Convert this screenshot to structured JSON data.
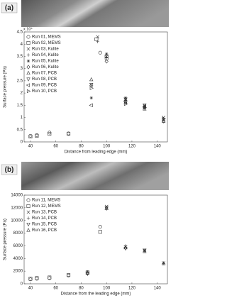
{
  "chart_data": [
    {
      "type": "scatter",
      "panel_label": "(a)",
      "y_multiplier": "x 10⁴",
      "xlabel": "Distance from leading edge (mm)",
      "ylabel": "Surface pressure (Pa)",
      "xlim": [
        35,
        148
      ],
      "xticks": [
        40,
        60,
        80,
        100,
        120,
        140
      ],
      "ylim": [
        0,
        4.5
      ],
      "yticks": [
        0,
        0.5,
        1,
        1.5,
        2,
        2.5,
        3,
        3.5,
        4,
        4.5
      ],
      "series": [
        {
          "name": "Run 01, MEMS",
          "marker": "o",
          "color": "#333333",
          "x": [
            40,
            45,
            55,
            70,
            95,
            100
          ],
          "values": [
            0.25,
            0.28,
            0.38,
            0.35,
            3.65,
            3.4
          ]
        },
        {
          "name": "Run 02, MEMS",
          "marker": "s",
          "color": "#333333",
          "x": [
            40,
            45,
            55,
            70,
            92,
            100
          ],
          "values": [
            0.22,
            0.25,
            0.33,
            0.33,
            4.2,
            3.5
          ]
        },
        {
          "name": "Run 03, Kulite",
          "marker": "x",
          "color": "#333333",
          "x": [
            93,
            100,
            115,
            130,
            145
          ],
          "values": [
            4.3,
            3.5,
            1.75,
            1.5,
            1.0
          ]
        },
        {
          "name": "Run 04, Kulite",
          "marker": "+",
          "color": "#333333",
          "x": [
            93,
            100,
            115,
            130,
            145
          ],
          "values": [
            4.1,
            3.45,
            1.7,
            1.4,
            0.95
          ]
        },
        {
          "name": "Run 05, Kulite",
          "marker": "*",
          "color": "#333333",
          "x": [
            88,
            100,
            115,
            130,
            145
          ],
          "values": [
            1.8,
            3.6,
            1.8,
            1.45,
            0.9
          ]
        },
        {
          "name": "Run 06, Kulite",
          "marker": "d",
          "color": "#333333",
          "x": [
            88,
            100,
            115,
            130,
            145
          ],
          "values": [
            2.3,
            3.3,
            1.65,
            1.4,
            0.85
          ]
        },
        {
          "name": "Run 07, PCB",
          "marker": "^",
          "color": "#333333",
          "x": [
            88,
            115,
            130,
            145
          ],
          "values": [
            2.55,
            1.6,
            1.35,
            0.85
          ]
        },
        {
          "name": "Run 08, PCB",
          "marker": "v",
          "color": "#333333",
          "x": [
            88,
            115,
            130
          ],
          "values": [
            2.35,
            1.75,
            1.5
          ]
        },
        {
          "name": "Run 09, PCB",
          "marker": "<",
          "color": "#333333",
          "x": [
            88,
            115,
            130
          ],
          "values": [
            1.5,
            1.65,
            1.45
          ]
        },
        {
          "name": "Run 10, PCB",
          "marker": ">",
          "color": "#333333",
          "x": [
            88,
            115,
            130,
            145
          ],
          "values": [
            2.2,
            1.55,
            1.4,
            0.95
          ]
        }
      ]
    },
    {
      "type": "scatter",
      "panel_label": "(b)",
      "xlabel": "Distance from the leading edge (mm)",
      "ylabel": "Surface pressure (Pa)",
      "xlim": [
        35,
        148
      ],
      "xticks": [
        40,
        60,
        80,
        100,
        120,
        140
      ],
      "ylim": [
        0,
        14000
      ],
      "yticks": [
        0,
        2000,
        4000,
        6000,
        8000,
        10000,
        12000,
        14000
      ],
      "series": [
        {
          "name": "Run 11, MEMS",
          "marker": "o",
          "color": "#333333",
          "x": [
            40,
            45,
            55,
            70,
            85,
            95
          ],
          "values": [
            700,
            800,
            900,
            1300,
            1700,
            9000
          ]
        },
        {
          "name": "Run 12, MEMS",
          "marker": "s",
          "color": "#333333",
          "x": [
            40,
            45,
            55,
            70,
            85,
            95
          ],
          "values": [
            800,
            900,
            1000,
            1400,
            1800,
            8200
          ]
        },
        {
          "name": "Run 13, PCB",
          "marker": "x",
          "color": "#333333",
          "x": [
            100,
            115,
            130,
            145
          ],
          "values": [
            12200,
            5800,
            5300,
            3300
          ]
        },
        {
          "name": "Run 14, PCB",
          "marker": "+",
          "color": "#333333",
          "x": [
            85,
            100,
            115,
            130,
            145
          ],
          "values": [
            1900,
            11800,
            6000,
            5200,
            3200
          ]
        },
        {
          "name": "Run 15, PCB",
          "marker": "v",
          "color": "#333333",
          "x": [
            85,
            100,
            115,
            130
          ],
          "values": [
            1600,
            12000,
            5600,
            5300
          ]
        },
        {
          "name": "Run 16, PCB",
          "marker": "^",
          "color": "#333333",
          "x": [
            85,
            100,
            115,
            130,
            145
          ],
          "values": [
            1700,
            11900,
            5700,
            5100,
            3200
          ]
        }
      ]
    }
  ]
}
